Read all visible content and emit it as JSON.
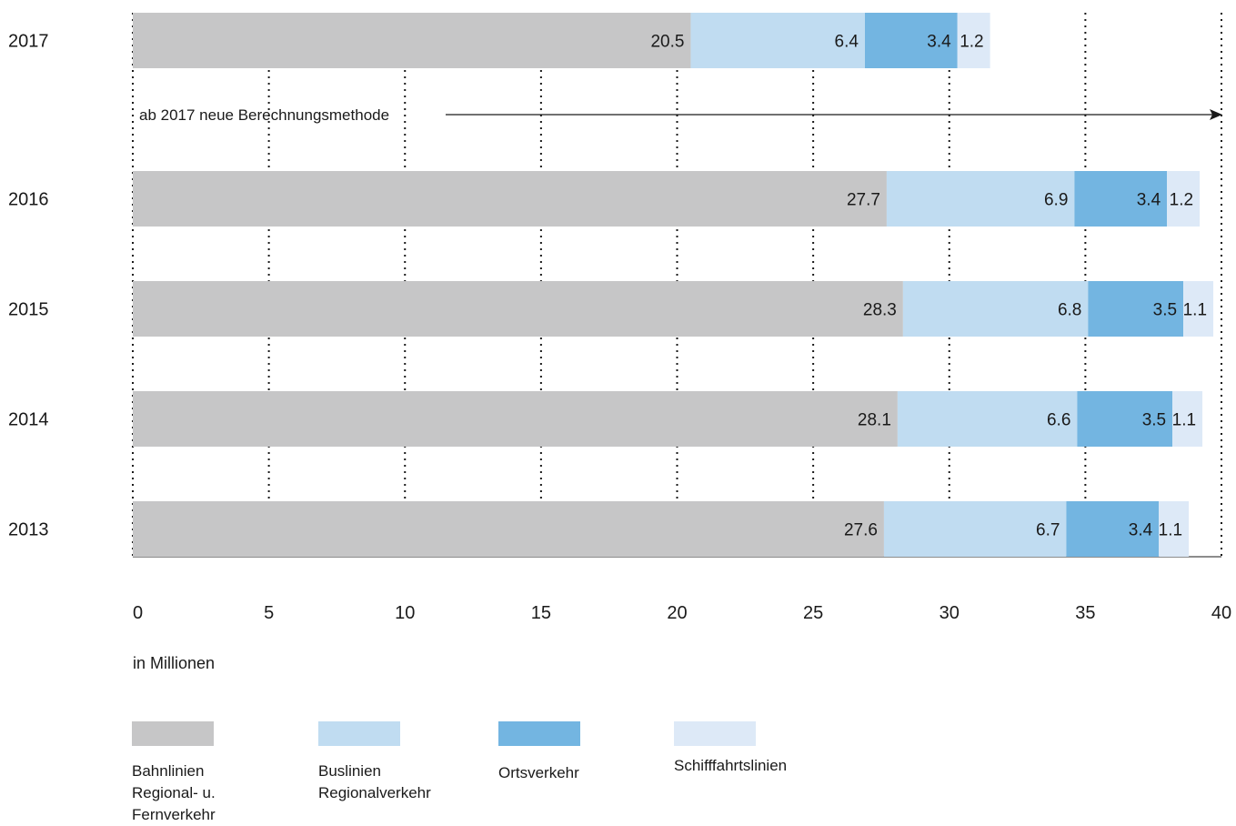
{
  "chart_data": {
    "type": "bar",
    "orientation": "horizontal",
    "stacked": true,
    "categories": [
      "2017",
      "2016",
      "2015",
      "2014",
      "2013"
    ],
    "series": [
      {
        "name": "Bahnlinien Regional- u. Fernverkehr",
        "values": [
          20.5,
          27.7,
          28.3,
          28.1,
          27.6
        ],
        "color": "#c6c6c7"
      },
      {
        "name": "Buslinien Regionalverkehr",
        "values": [
          6.4,
          6.9,
          6.8,
          6.6,
          6.7
        ],
        "color": "#c0dcf1"
      },
      {
        "name": "Ortsverkehr",
        "values": [
          3.4,
          3.4,
          3.5,
          3.5,
          3.4
        ],
        "color": "#73b5e1"
      },
      {
        "name": "Schifffahrtslinien",
        "values": [
          1.2,
          1.2,
          1.1,
          1.1,
          1.1
        ],
        "color": "#dde9f7"
      }
    ],
    "value_labels": [
      [
        "20.5",
        "6.4",
        "3.4",
        "1.2"
      ],
      [
        "27.7",
        "6.9",
        "3.4",
        "1.2"
      ],
      [
        "28.3",
        "6.8",
        "3.5",
        "1.1"
      ],
      [
        "28.1",
        "6.6",
        "3.5",
        "1.1"
      ],
      [
        "27.6",
        "6.7",
        "3.4",
        "1.1"
      ]
    ],
    "xlim": [
      0,
      40
    ],
    "xticks": [
      "0",
      "5",
      "10",
      "15",
      "20",
      "25",
      "30",
      "35",
      "40"
    ],
    "xticks_values": [
      0,
      5,
      10,
      15,
      20,
      25,
      30,
      35,
      40
    ],
    "xlabel": "in Millionen",
    "grid": "dotted vertical",
    "legend": "bottom",
    "annotation": "ab 2017 neue Berechnungsmethode",
    "legend_labels": [
      "Bahnlinien\nRegional- u.\nFernverkehr",
      "Buslinien\nRegionalverkehr",
      "Ortsverkehr",
      "Schifffahrtslinien"
    ]
  }
}
